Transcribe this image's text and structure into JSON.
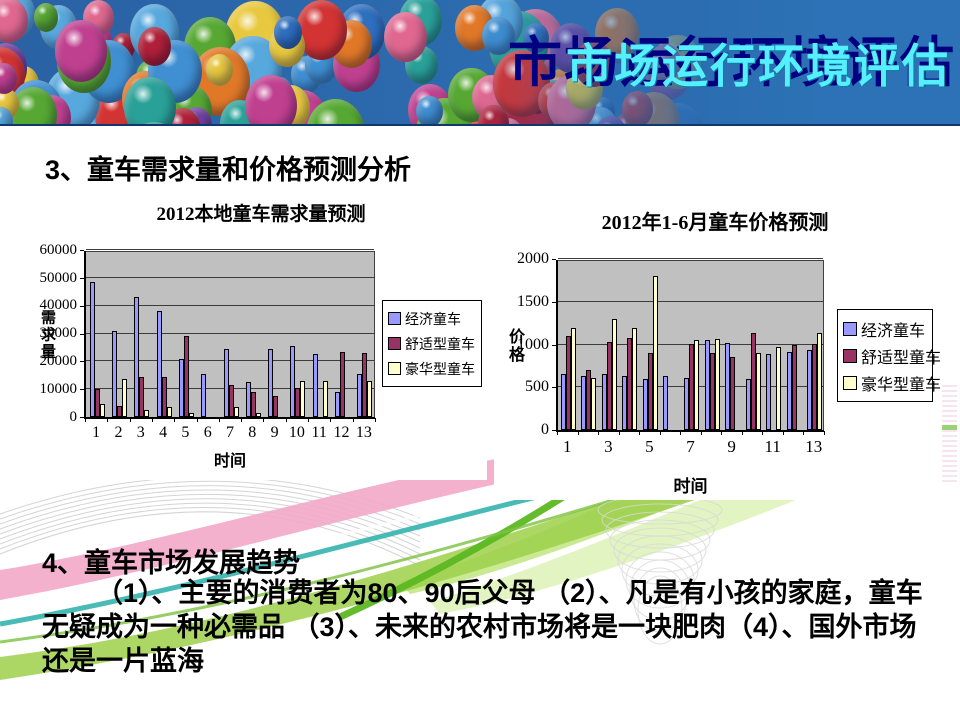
{
  "banner": {
    "title": "市场运行环境评估"
  },
  "headings": {
    "section3": "3、童车需求量和价格预测分析",
    "section4": "4、童车市场发展趋势"
  },
  "paragraph": "（1）、主要的消费者为80、90后父母 （2）、凡是有小孩的家庭，童车无疑成为一种必需品 （3）、未来的农村市场将是一块肥肉（4）、国外市场还是一片蓝海",
  "colors": {
    "banner_blue": "#2c6cb0",
    "title_cyan": "#55efff",
    "title_navy": "#000080",
    "series_economy": "#9999FF",
    "series_comfort": "#993366",
    "series_luxury": "#FFFFCC",
    "plot_background": "#C0C0C0"
  },
  "chart_data": [
    {
      "type": "bar",
      "title": "2012本地童车需求量预测",
      "xlabel": "时间",
      "ylabel": "需求量",
      "categories": [
        "1",
        "2",
        "3",
        "4",
        "5",
        "6",
        "7",
        "8",
        "9",
        "10",
        "11",
        "12",
        "13"
      ],
      "x_tick_labels": [
        "1",
        "2",
        "3",
        "4",
        "5",
        "6",
        "7",
        "8",
        "9",
        "10",
        "11",
        "12",
        "13"
      ],
      "ylim": [
        0,
        60000
      ],
      "ytick_labels": [
        "0",
        "10000",
        "20000",
        "30000",
        "40000",
        "50000",
        "60000"
      ],
      "grid": true,
      "legend_position": "right",
      "series": [
        {
          "name": "经济童车",
          "color": "#9999FF",
          "values": [
            48500,
            31000,
            43000,
            38000,
            21000,
            15500,
            24500,
            12500,
            24500,
            25500,
            22500,
            9000,
            15500
          ]
        },
        {
          "name": "舒适型童车",
          "color": "#993366",
          "values": [
            10000,
            4000,
            14500,
            14500,
            29000,
            0,
            11500,
            9000,
            7500,
            10500,
            0,
            23500,
            23000
          ]
        },
        {
          "name": "豪华型童车",
          "color": "#FFFFCC",
          "values": [
            4500,
            13500,
            2500,
            3500,
            1500,
            0,
            3500,
            1500,
            0,
            13000,
            13000,
            0,
            13000
          ]
        }
      ]
    },
    {
      "type": "bar",
      "title": "2012年1-6月童车价格预测",
      "xlabel": "时间",
      "ylabel": "价格",
      "categories": [
        "1",
        "2",
        "3",
        "4",
        "5",
        "6",
        "7",
        "8",
        "9",
        "10",
        "11",
        "12",
        "13"
      ],
      "x_tick_labels": [
        "1",
        "3",
        "5",
        "7",
        "9",
        "11",
        "13"
      ],
      "ylim": [
        0,
        2000
      ],
      "ytick_labels": [
        "0",
        "500",
        "1000",
        "1500",
        "2000"
      ],
      "grid": true,
      "legend_position": "right",
      "series": [
        {
          "name": "经济童车",
          "color": "#9999FF",
          "values": [
            650,
            630,
            650,
            630,
            600,
            630,
            610,
            1050,
            1020,
            600,
            890,
            910,
            930
          ]
        },
        {
          "name": "舒适型童车",
          "color": "#993366",
          "values": [
            1100,
            700,
            1030,
            1080,
            900,
            0,
            1000,
            900,
            850,
            1140,
            0,
            990,
            1000
          ]
        },
        {
          "name": "豪华型童车",
          "color": "#FFFFCC",
          "values": [
            1190,
            610,
            1300,
            1190,
            1800,
            0,
            1050,
            1070,
            0,
            900,
            970,
            0,
            1140
          ]
        }
      ]
    }
  ]
}
